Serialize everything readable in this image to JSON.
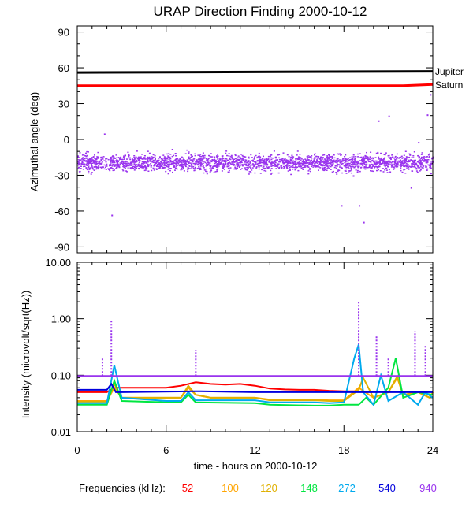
{
  "colors": {
    "f52": "#ff0000",
    "f100": "#ffa500",
    "f120": "#e0b000",
    "f148": "#00e640",
    "f272": "#00aaee",
    "f540": "#0000dd",
    "f940": "#9933ee",
    "jupiter": "#000000",
    "saturn": "#ff0000"
  },
  "chart_data": [
    {
      "type": "scatter",
      "title": "URAP Direction Finding  2000-10-12",
      "xlabel": "",
      "ylabel": "Azimuthal angle (deg)",
      "xlim": [
        0,
        24
      ],
      "ylim": [
        -95,
        95
      ],
      "xticks": [
        0,
        6,
        12,
        18,
        24
      ],
      "yticks": [
        90,
        60,
        30,
        0,
        -30,
        -60,
        -90
      ],
      "ytick_labels": [
        "90",
        "60",
        "30",
        "0",
        "-30",
        "-60",
        "-90"
      ],
      "series": [
        {
          "name": "Jupiter",
          "values": [
            56,
            57
          ],
          "x": [
            0,
            24
          ],
          "style": "line",
          "color_key": "jupiter"
        },
        {
          "name": "Saturn",
          "values": [
            45,
            45,
            46
          ],
          "x": [
            0,
            22,
            24
          ],
          "style": "line",
          "color_key": "saturn"
        },
        {
          "name": "940 kHz direction",
          "style": "scatter",
          "color_key": "f940",
          "center": -19,
          "spread": 12
        }
      ],
      "annotations": [
        {
          "text": "Jupiter",
          "y": 57
        },
        {
          "text": "Saturn",
          "y": 46
        }
      ]
    },
    {
      "type": "line",
      "title": "",
      "xlabel": "time - hours on 2000-10-12",
      "ylabel": "Intensity (microvolt/sqrt(Hz))",
      "yscale": "log",
      "xlim": [
        0,
        24
      ],
      "ylim": [
        0.01,
        10
      ],
      "xticks": [
        0,
        6,
        12,
        18,
        24
      ],
      "xtick_labels": [
        "0",
        "6",
        "12",
        "18",
        "24"
      ],
      "yticks": [
        10,
        1,
        0.1,
        0.01
      ],
      "ytick_labels": [
        "10.00",
        "1.00",
        "0.10",
        "0.01"
      ],
      "series": [
        {
          "name": "52",
          "color_key": "f52",
          "x": [
            0,
            2,
            2.5,
            3,
            6,
            7,
            8,
            9,
            10,
            11,
            12,
            13,
            14,
            15,
            16,
            17,
            18,
            19,
            19.3
          ],
          "values": [
            0.05,
            0.05,
            0.06,
            0.06,
            0.06,
            0.065,
            0.075,
            0.07,
            0.068,
            0.07,
            0.065,
            0.058,
            0.056,
            0.055,
            0.055,
            0.053,
            0.052,
            0.052,
            0.05
          ]
        },
        {
          "name": "100",
          "color_key": "f100",
          "x": [
            0,
            2,
            2.5,
            3,
            6,
            7,
            7.5,
            8,
            9,
            12,
            13,
            16,
            17,
            18,
            19,
            20,
            21,
            21.6,
            22,
            23,
            23.8,
            24
          ],
          "values": [
            0.035,
            0.035,
            0.06,
            0.04,
            0.04,
            0.04,
            0.06,
            0.045,
            0.04,
            0.04,
            0.037,
            0.037,
            0.036,
            0.036,
            0.06,
            0.04,
            0.05,
            0.09,
            0.045,
            0.05,
            0.04,
            0.05
          ]
        },
        {
          "name": "120",
          "color_key": "f120",
          "x": [
            0,
            2,
            2.5,
            3,
            6,
            7,
            7.5,
            8,
            9,
            12,
            13,
            16,
            17,
            18,
            19,
            19.3,
            20,
            21,
            21.6,
            22,
            23,
            23.8,
            24
          ],
          "values": [
            0.034,
            0.034,
            0.07,
            0.04,
            0.04,
            0.04,
            0.065,
            0.045,
            0.04,
            0.04,
            0.036,
            0.036,
            0.035,
            0.035,
            0.055,
            0.09,
            0.04,
            0.05,
            0.095,
            0.045,
            0.05,
            0.04,
            0.05
          ]
        },
        {
          "name": "148",
          "color_key": "f148",
          "x": [
            0,
            2,
            2.5,
            3,
            6,
            7,
            7.5,
            8,
            12,
            13,
            16,
            17,
            18,
            19,
            19.5,
            20,
            21,
            21.5,
            22,
            23,
            24
          ],
          "values": [
            0.03,
            0.03,
            0.08,
            0.035,
            0.033,
            0.033,
            0.045,
            0.033,
            0.032,
            0.03,
            0.029,
            0.029,
            0.03,
            0.03,
            0.04,
            0.03,
            0.06,
            0.2,
            0.04,
            0.05,
            0.045
          ]
        },
        {
          "name": "272",
          "color_key": "f272",
          "x": [
            0,
            2,
            2.5,
            3,
            6,
            7,
            7.5,
            8,
            12,
            13,
            16,
            17,
            18,
            18.7,
            19,
            19.3,
            20,
            20.5,
            21,
            22,
            23,
            23.5,
            24
          ],
          "values": [
            0.032,
            0.032,
            0.15,
            0.04,
            0.035,
            0.035,
            0.05,
            0.036,
            0.036,
            0.033,
            0.033,
            0.032,
            0.033,
            0.2,
            0.35,
            0.05,
            0.03,
            0.1,
            0.035,
            0.05,
            0.03,
            0.05,
            0.04
          ]
        },
        {
          "name": "540",
          "color_key": "f540",
          "x": [
            0,
            2,
            2.3,
            2.6,
            3,
            8,
            12,
            17,
            18,
            19,
            20,
            24
          ],
          "values": [
            0.055,
            0.055,
            0.07,
            0.05,
            0.05,
            0.052,
            0.05,
            0.05,
            0.05,
            0.05,
            0.05,
            0.05
          ]
        },
        {
          "name": "940",
          "color_key": "f940",
          "x": [
            0,
            24
          ],
          "values": [
            0.097,
            0.097
          ],
          "peaks": [
            {
              "x": 1.7,
              "value": 0.2
            },
            {
              "x": 2.3,
              "value": 0.9
            },
            {
              "x": 8.0,
              "value": 0.28
            },
            {
              "x": 19.0,
              "value": 2.0
            },
            {
              "x": 20.2,
              "value": 0.5
            },
            {
              "x": 21.0,
              "value": 0.2
            },
            {
              "x": 22.8,
              "value": 0.6
            },
            {
              "x": 23.5,
              "value": 0.35
            }
          ]
        }
      ]
    }
  ],
  "frequencies": {
    "label": "Frequencies (kHz):",
    "items": [
      {
        "text": "52",
        "color_key": "f52"
      },
      {
        "text": "100",
        "color_key": "f100"
      },
      {
        "text": "120",
        "color_key": "f120"
      },
      {
        "text": "148",
        "color_key": "f148"
      },
      {
        "text": "272",
        "color_key": "f272"
      },
      {
        "text": "540",
        "color_key": "f540"
      },
      {
        "text": "940",
        "color_key": "f940"
      }
    ]
  }
}
